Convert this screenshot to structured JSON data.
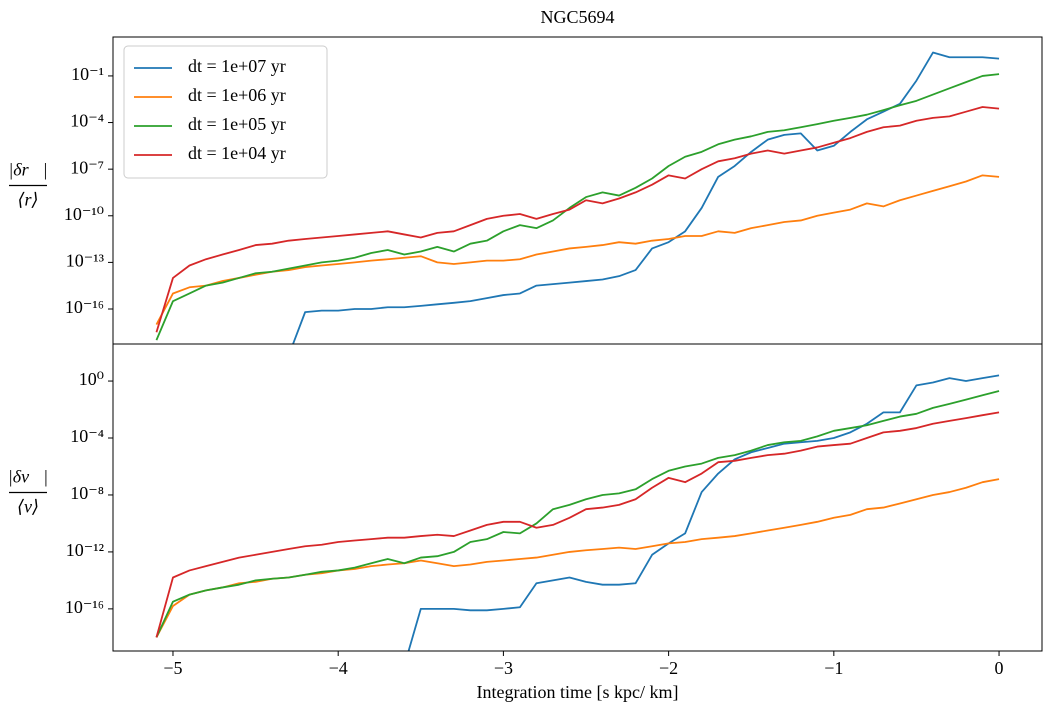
{
  "chart_data": [
    {
      "type": "line",
      "title": "NGC5694",
      "ylabel": {
        "numerator": "|δr⃗|",
        "denominator": "⟨r⟩"
      },
      "logy": true,
      "legend": "upper left",
      "xlim": [
        -5.363,
        0.26
      ],
      "ylim": [
        5.6e-19,
        32
      ],
      "yticks": [
        {
          "value": 0.1,
          "label": "10⁻¹"
        },
        {
          "value": 0.0001,
          "label": "10⁻⁴"
        },
        {
          "value": 1e-07,
          "label": "10⁻⁷"
        },
        {
          "value": 1e-10,
          "label": "10⁻¹⁰"
        },
        {
          "value": 1e-13,
          "label": "10⁻¹³"
        },
        {
          "value": 1e-16,
          "label": "10⁻¹⁶"
        }
      ],
      "x": [
        -5.1,
        -5.0,
        -4.9,
        -4.8,
        -4.7,
        -4.6,
        -4.5,
        -4.4,
        -4.3,
        -4.2,
        -4.1,
        -4.0,
        -3.9,
        -3.8,
        -3.7,
        -3.6,
        -3.5,
        -3.4,
        -3.3,
        -3.2,
        -3.1,
        -3.0,
        -2.9,
        -2.8,
        -2.7,
        -2.6,
        -2.5,
        -2.4,
        -2.3,
        -2.2,
        -2.1,
        -2.0,
        -1.9,
        -1.8,
        -1.7,
        -1.6,
        -1.5,
        -1.4,
        -1.3,
        -1.2,
        -1.1,
        -1.0,
        -0.9,
        -0.8,
        -0.7,
        -0.6,
        -0.5,
        -0.4,
        -0.3,
        -0.2,
        -0.1,
        0
      ],
      "series": [
        {
          "name": "dt = 1e+07 yr",
          "color": "#1f77b4",
          "values": [
            null,
            null,
            null,
            null,
            null,
            null,
            null,
            null,
            1e-19,
            6.3e-17,
            7.9e-17,
            7.9e-17,
            1e-16,
            1e-16,
            1.3e-16,
            1.3e-16,
            1.6e-16,
            2e-16,
            2.5e-16,
            3.2e-16,
            5e-16,
            7.9e-16,
            1e-15,
            3.2e-15,
            4e-15,
            5e-15,
            6.3e-15,
            7.9e-15,
            1.3e-14,
            3.2e-14,
            7.9e-13,
            2e-12,
            1e-11,
            3.2e-10,
            3.2e-08,
            1.6e-07,
            1.3e-06,
            7.9e-06,
            1.6e-05,
            2e-05,
            1.6e-06,
            3.2e-06,
            2.5e-05,
            0.00016,
            0.0005,
            0.0016,
            0.05,
            3.2,
            1.6,
            1.6,
            1.6,
            1.3
          ]
        },
        {
          "name": "dt = 1e+06 yr",
          "color": "#ff7f0e",
          "values": [
            1e-17,
            1e-15,
            2.5e-15,
            3.2e-15,
            6.3e-15,
            1e-14,
            1.6e-14,
            2.5e-14,
            3.2e-14,
            5e-14,
            6.3e-14,
            7.9e-14,
            1e-13,
            1.3e-13,
            1.6e-13,
            2e-13,
            2.5e-13,
            1e-13,
            7.9e-14,
            1e-13,
            1.3e-13,
            1.3e-13,
            1.6e-13,
            3.2e-13,
            5e-13,
            7.9e-13,
            1e-12,
            1.3e-12,
            2e-12,
            1.6e-12,
            2.5e-12,
            3.2e-12,
            5e-12,
            5e-12,
            1e-11,
            7.9e-12,
            1.6e-11,
            2.5e-11,
            4e-11,
            5e-11,
            1e-10,
            1.6e-10,
            2.5e-10,
            6.3e-10,
            4e-10,
            1e-09,
            2e-09,
            4e-09,
            7.9e-09,
            1.6e-08,
            4e-08,
            3.2e-08
          ]
        },
        {
          "name": "dt = 1e+05 yr",
          "color": "#2ca02c",
          "values": [
            1e-18,
            3.2e-16,
            1e-15,
            3.2e-15,
            5e-15,
            1e-14,
            2e-14,
            2.5e-14,
            4e-14,
            6.3e-14,
            1e-13,
            1.3e-13,
            2e-13,
            4e-13,
            6.3e-13,
            3.2e-13,
            5e-13,
            1e-12,
            5e-13,
            1.6e-12,
            2.5e-12,
            1e-11,
            2.5e-11,
            1.6e-11,
            5e-11,
            3.2e-10,
            1.6e-09,
            3.2e-09,
            2e-09,
            6.3e-09,
            2.5e-08,
            1.6e-07,
            6.3e-07,
            1.3e-06,
            4e-06,
            7.9e-06,
            1.3e-05,
            2.5e-05,
            3.2e-05,
            5e-05,
            7.9e-05,
            0.00013,
            0.0002,
            0.00032,
            0.00063,
            0.0013,
            0.0025,
            0.0063,
            0.016,
            0.04,
            0.1,
            0.13
          ]
        },
        {
          "name": "dt = 1e+04 yr",
          "color": "#d62728",
          "values": [
            3.2e-18,
            1e-14,
            6.3e-14,
            1.6e-13,
            3.2e-13,
            6.3e-13,
            1.3e-12,
            1.6e-12,
            2.5e-12,
            3.2e-12,
            4e-12,
            5e-12,
            6.3e-12,
            7.9e-12,
            1e-11,
            6.3e-12,
            4e-12,
            7.9e-12,
            1e-11,
            2.5e-11,
            6.3e-11,
            1e-10,
            1.3e-10,
            6.3e-11,
            1.3e-10,
            2.5e-10,
            1e-09,
            6.3e-10,
            1.3e-09,
            3.2e-09,
            1e-08,
            4e-08,
            2.5e-08,
            1e-07,
            3.2e-07,
            5e-07,
            1e-06,
            1.6e-06,
            1e-06,
            1.6e-06,
            2.5e-06,
            5e-06,
            1e-05,
            2.5e-05,
            5e-05,
            6.3e-05,
            0.00013,
            0.0002,
            0.00025,
            0.0005,
            0.001,
            0.00079
          ]
        }
      ]
    },
    {
      "type": "line",
      "ylabel": {
        "numerator": "|δv⃗|",
        "denominator": "⟨v⟩"
      },
      "xlabel": "Integration time [s kpc/ km]",
      "logy": true,
      "xlim": [
        -5.363,
        0.26
      ],
      "ylim": [
        1.1e-19,
        400
      ],
      "xticks": [
        {
          "value": -5,
          "label": "−5"
        },
        {
          "value": -4,
          "label": "−4"
        },
        {
          "value": -3,
          "label": "−3"
        },
        {
          "value": -2,
          "label": "−2"
        },
        {
          "value": -1,
          "label": "−1"
        },
        0
      ],
      "yticks": [
        {
          "value": 1,
          "label": "10⁰"
        },
        {
          "value": 0.0001,
          "label": "10⁻⁴"
        },
        {
          "value": 1e-08,
          "label": "10⁻⁸"
        },
        {
          "value": 1e-12,
          "label": "10⁻¹²"
        },
        {
          "value": 1e-16,
          "label": "10⁻¹⁶"
        }
      ],
      "x": [
        -5.1,
        -5.0,
        -4.9,
        -4.8,
        -4.7,
        -4.6,
        -4.5,
        -4.4,
        -4.3,
        -4.2,
        -4.1,
        -4.0,
        -3.9,
        -3.8,
        -3.7,
        -3.6,
        -3.5,
        -3.4,
        -3.3,
        -3.2,
        -3.1,
        -3.0,
        -2.9,
        -2.8,
        -2.7,
        -2.6,
        -2.5,
        -2.4,
        -2.3,
        -2.2,
        -2.1,
        -2.0,
        -1.9,
        -1.8,
        -1.7,
        -1.6,
        -1.5,
        -1.4,
        -1.3,
        -1.2,
        -1.1,
        -1.0,
        -0.9,
        -0.8,
        -0.7,
        -0.6,
        -0.5,
        -0.4,
        -0.3,
        -0.2,
        -0.1,
        0
      ],
      "series": [
        {
          "color": "#1f77b4",
          "values": [
            null,
            null,
            null,
            null,
            null,
            null,
            null,
            null,
            null,
            null,
            null,
            null,
            null,
            null,
            null,
            1e-20,
            1e-16,
            1e-16,
            1e-16,
            7.9e-17,
            7.9e-17,
            1e-16,
            1.3e-16,
            6.3e-15,
            1e-14,
            1.6e-14,
            7.9e-15,
            5e-15,
            5e-15,
            6.3e-15,
            6.3e-13,
            4e-12,
            2e-11,
            1.6e-08,
            3.2e-07,
            3.2e-06,
            1e-05,
            2e-05,
            4e-05,
            5e-05,
            6.3e-05,
            0.0001,
            0.00025,
            0.001,
            0.0063,
            0.0063,
            0.5,
            0.79,
            1.6,
            1,
            1.6,
            2.5
          ]
        },
        {
          "color": "#ff7f0e",
          "values": [
            1e-18,
            1.6e-16,
            1e-15,
            2e-15,
            3.2e-15,
            6.3e-15,
            7.9e-15,
            1.3e-14,
            1.6e-14,
            2.5e-14,
            3.2e-14,
            5e-14,
            6.3e-14,
            1e-13,
            1.3e-13,
            1.6e-13,
            2.5e-13,
            1.6e-13,
            1e-13,
            1.3e-13,
            2e-13,
            2.5e-13,
            3.2e-13,
            4e-13,
            6.3e-13,
            1e-12,
            1.3e-12,
            1.6e-12,
            2e-12,
            1.6e-12,
            2.5e-12,
            4e-12,
            5e-12,
            7.9e-12,
            1e-11,
            1.3e-11,
            2e-11,
            3.2e-11,
            5e-11,
            7.9e-11,
            1.3e-10,
            2.5e-10,
            4e-10,
            1e-09,
            1.3e-09,
            2.5e-09,
            5e-09,
            1e-08,
            1.6e-08,
            3.2e-08,
            7.9e-08,
            1.3e-07
          ]
        },
        {
          "color": "#2ca02c",
          "values": [
            1e-18,
            3.2e-16,
            1e-15,
            2e-15,
            3.2e-15,
            5e-15,
            1e-14,
            1.3e-14,
            1.6e-14,
            2.5e-14,
            4e-14,
            5e-14,
            7.9e-14,
            1.6e-13,
            3.2e-13,
            1.6e-13,
            4e-13,
            5e-13,
            1e-12,
            5e-12,
            7.9e-12,
            2.5e-11,
            2e-11,
            1e-10,
            1e-09,
            2e-09,
            5e-09,
            1e-08,
            1.3e-08,
            2.5e-08,
            1.3e-07,
            5e-07,
            1e-06,
            1.6e-06,
            4e-06,
            6.3e-06,
            1.3e-05,
            3.2e-05,
            5e-05,
            6.3e-05,
            0.00013,
            0.00032,
            0.0005,
            0.00079,
            0.0016,
            0.0032,
            0.005,
            0.013,
            0.025,
            0.05,
            0.1,
            0.2
          ]
        },
        {
          "color": "#d62728",
          "values": [
            1e-18,
            1.6e-14,
            5e-14,
            1e-13,
            2e-13,
            4e-13,
            6.3e-13,
            1e-12,
            1.6e-12,
            2.5e-12,
            3.2e-12,
            5e-12,
            6.3e-12,
            7.9e-12,
            1e-11,
            1e-11,
            1.3e-11,
            1.6e-11,
            1.3e-11,
            3.2e-11,
            7.9e-11,
            1.3e-10,
            1.3e-10,
            5e-11,
            7.9e-11,
            2.5e-10,
            1e-09,
            1.3e-09,
            2e-09,
            5e-09,
            3.2e-08,
            1.6e-07,
            7.9e-08,
            3.2e-07,
            2e-06,
            2.5e-06,
            4e-06,
            6.3e-06,
            7.9e-06,
            1.3e-05,
            2.5e-05,
            3.2e-05,
            4e-05,
            0.0001,
            0.00025,
            0.00032,
            0.0005,
            0.001,
            0.0016,
            0.0025,
            0.004,
            0.0063
          ]
        }
      ]
    }
  ]
}
